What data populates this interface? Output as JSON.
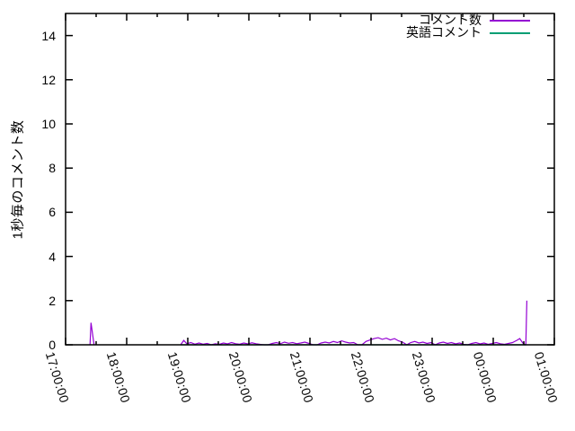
{
  "chart_data": {
    "type": "line",
    "title": "",
    "xlabel": "",
    "ylabel": "1秒毎のコメント数",
    "grid": false,
    "legend_position": "top-right",
    "x_tick_labels": [
      "17:00:00",
      "18:00:00",
      "19:00:00",
      "20:00:00",
      "21:00:00",
      "22:00:00",
      "23:00:00",
      "00:00:00",
      "01:00:00"
    ],
    "x_minutes_range": [
      0,
      480
    ],
    "x_minor_tick_minutes": 30,
    "y_ticks": [
      0,
      2,
      4,
      6,
      8,
      10,
      12,
      14
    ],
    "ylim": [
      0,
      15
    ],
    "axis_color": "#000000",
    "series": [
      {
        "name": "コメント数",
        "color": "#9400d3",
        "segments": [
          [
            [
              24,
              0
            ],
            [
              25,
              1
            ],
            [
              28,
              0
            ]
          ],
          [
            [
              113,
              0
            ],
            [
              116,
              0.2
            ],
            [
              119,
              0.05
            ],
            [
              123,
              0.1
            ],
            [
              127,
              0.03
            ],
            [
              131,
              0.08
            ],
            [
              135,
              0.03
            ],
            [
              139,
              0.06
            ],
            [
              143,
              0
            ],
            [
              147,
              0.05
            ],
            [
              151,
              0.02
            ],
            [
              155,
              0.08
            ],
            [
              159,
              0.04
            ],
            [
              163,
              0.1
            ],
            [
              167,
              0.05
            ],
            [
              171,
              0.03
            ],
            [
              175,
              0.08
            ],
            [
              179,
              0.04
            ],
            [
              183,
              0.09
            ],
            [
              187,
              0.05
            ],
            [
              191,
              0.02
            ],
            [
              195,
              0
            ],
            [
              199,
              0
            ],
            [
              203,
              0.06
            ],
            [
              207,
              0.1
            ],
            [
              211,
              0.05
            ],
            [
              215,
              0.12
            ],
            [
              219,
              0.07
            ],
            [
              223,
              0.1
            ],
            [
              227,
              0.05
            ],
            [
              231,
              0.08
            ],
            [
              235,
              0.12
            ],
            [
              239,
              0.06
            ],
            [
              243,
              0
            ],
            [
              247,
              0
            ],
            [
              251,
              0.08
            ],
            [
              255,
              0.12
            ],
            [
              259,
              0.08
            ],
            [
              263,
              0.15
            ],
            [
              267,
              0.1
            ],
            [
              271,
              0.18
            ],
            [
              275,
              0.12
            ],
            [
              279,
              0.08
            ],
            [
              283,
              0.1
            ],
            [
              287,
              0
            ],
            [
              291,
              0
            ],
            [
              295,
              0.15
            ],
            [
              299,
              0.22
            ],
            [
              303,
              0.28
            ],
            [
              307,
              0.32
            ],
            [
              311,
              0.25
            ],
            [
              315,
              0.3
            ],
            [
              319,
              0.22
            ],
            [
              323,
              0.28
            ],
            [
              327,
              0.18
            ],
            [
              331,
              0.12
            ],
            [
              335,
              0
            ],
            [
              339,
              0.1
            ],
            [
              343,
              0.15
            ],
            [
              347,
              0.08
            ],
            [
              351,
              0.12
            ],
            [
              355,
              0.06
            ],
            [
              359,
              0.1
            ],
            [
              363,
              0
            ],
            [
              367,
              0.08
            ],
            [
              371,
              0.12
            ],
            [
              375,
              0.06
            ],
            [
              379,
              0.1
            ],
            [
              383,
              0.04
            ],
            [
              387,
              0.08
            ],
            [
              391,
              0.02
            ],
            [
              395,
              0
            ],
            [
              399,
              0.06
            ],
            [
              403,
              0.1
            ],
            [
              407,
              0.04
            ],
            [
              411,
              0.08
            ],
            [
              415,
              0.02
            ],
            [
              419,
              0.06
            ],
            [
              423,
              0.1
            ],
            [
              427,
              0.05
            ],
            [
              431,
              0.02
            ],
            [
              435,
              0.06
            ],
            [
              439,
              0.1
            ],
            [
              443,
              0.2
            ],
            [
              446,
              0.28
            ],
            [
              449,
              0.08
            ],
            [
              451,
              0
            ],
            [
              452,
              0.05
            ],
            [
              453,
              2
            ]
          ]
        ]
      },
      {
        "name": "英語コメント",
        "color": "#009e73",
        "segments": [
          [
            [
              113,
              0
            ],
            [
              453,
              0
            ]
          ]
        ]
      }
    ]
  }
}
